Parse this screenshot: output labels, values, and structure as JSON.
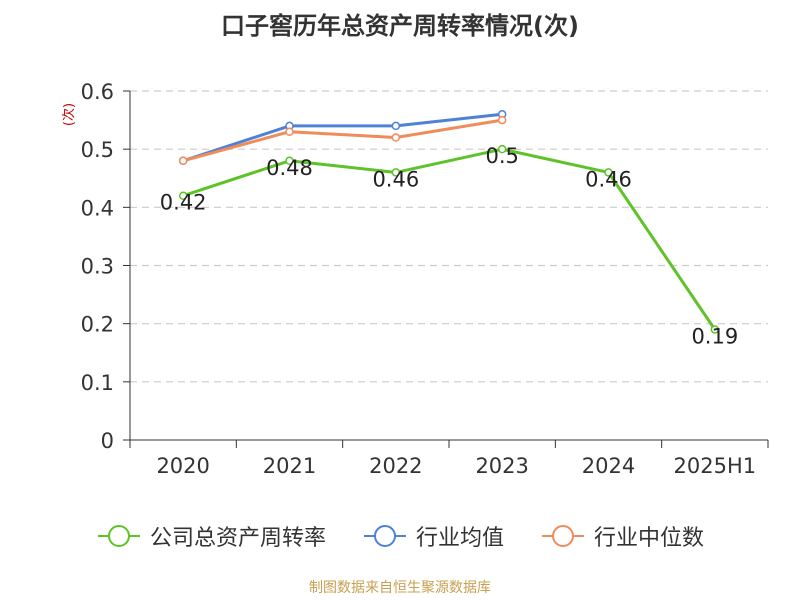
{
  "title": "口子窖历年总资产周转率情况(次)",
  "source_note": "制图数据来自恒生聚源数据库",
  "chart_data": {
    "type": "line",
    "title": "口子窖历年总资产周转率情况(次)",
    "ylabel": "(次)",
    "xlabel": "",
    "ylim": [
      0,
      0.6
    ],
    "yticks": [
      "0",
      "0.1",
      "0.2",
      "0.3",
      "0.4",
      "0.5",
      "0.6"
    ],
    "grid": true,
    "legend_position": "bottom",
    "categories": [
      "2020",
      "2021",
      "2022",
      "2023",
      "2024",
      "2025H1"
    ],
    "series": [
      {
        "name": "公司总资产周转率",
        "color": "#5ec229",
        "values": [
          0.42,
          0.48,
          0.46,
          0.5,
          0.46,
          0.19
        ],
        "data_labels": [
          "0.42",
          "0.48",
          "0.46",
          "0.5",
          "0.46",
          "0.19"
        ]
      },
      {
        "name": "行业均值",
        "color": "#4f81d6",
        "values": [
          0.48,
          0.54,
          0.54,
          0.56,
          null,
          null
        ]
      },
      {
        "name": "行业中位数",
        "color": "#f08b5a",
        "values": [
          0.48,
          0.53,
          0.52,
          0.55,
          null,
          null
        ]
      }
    ]
  }
}
